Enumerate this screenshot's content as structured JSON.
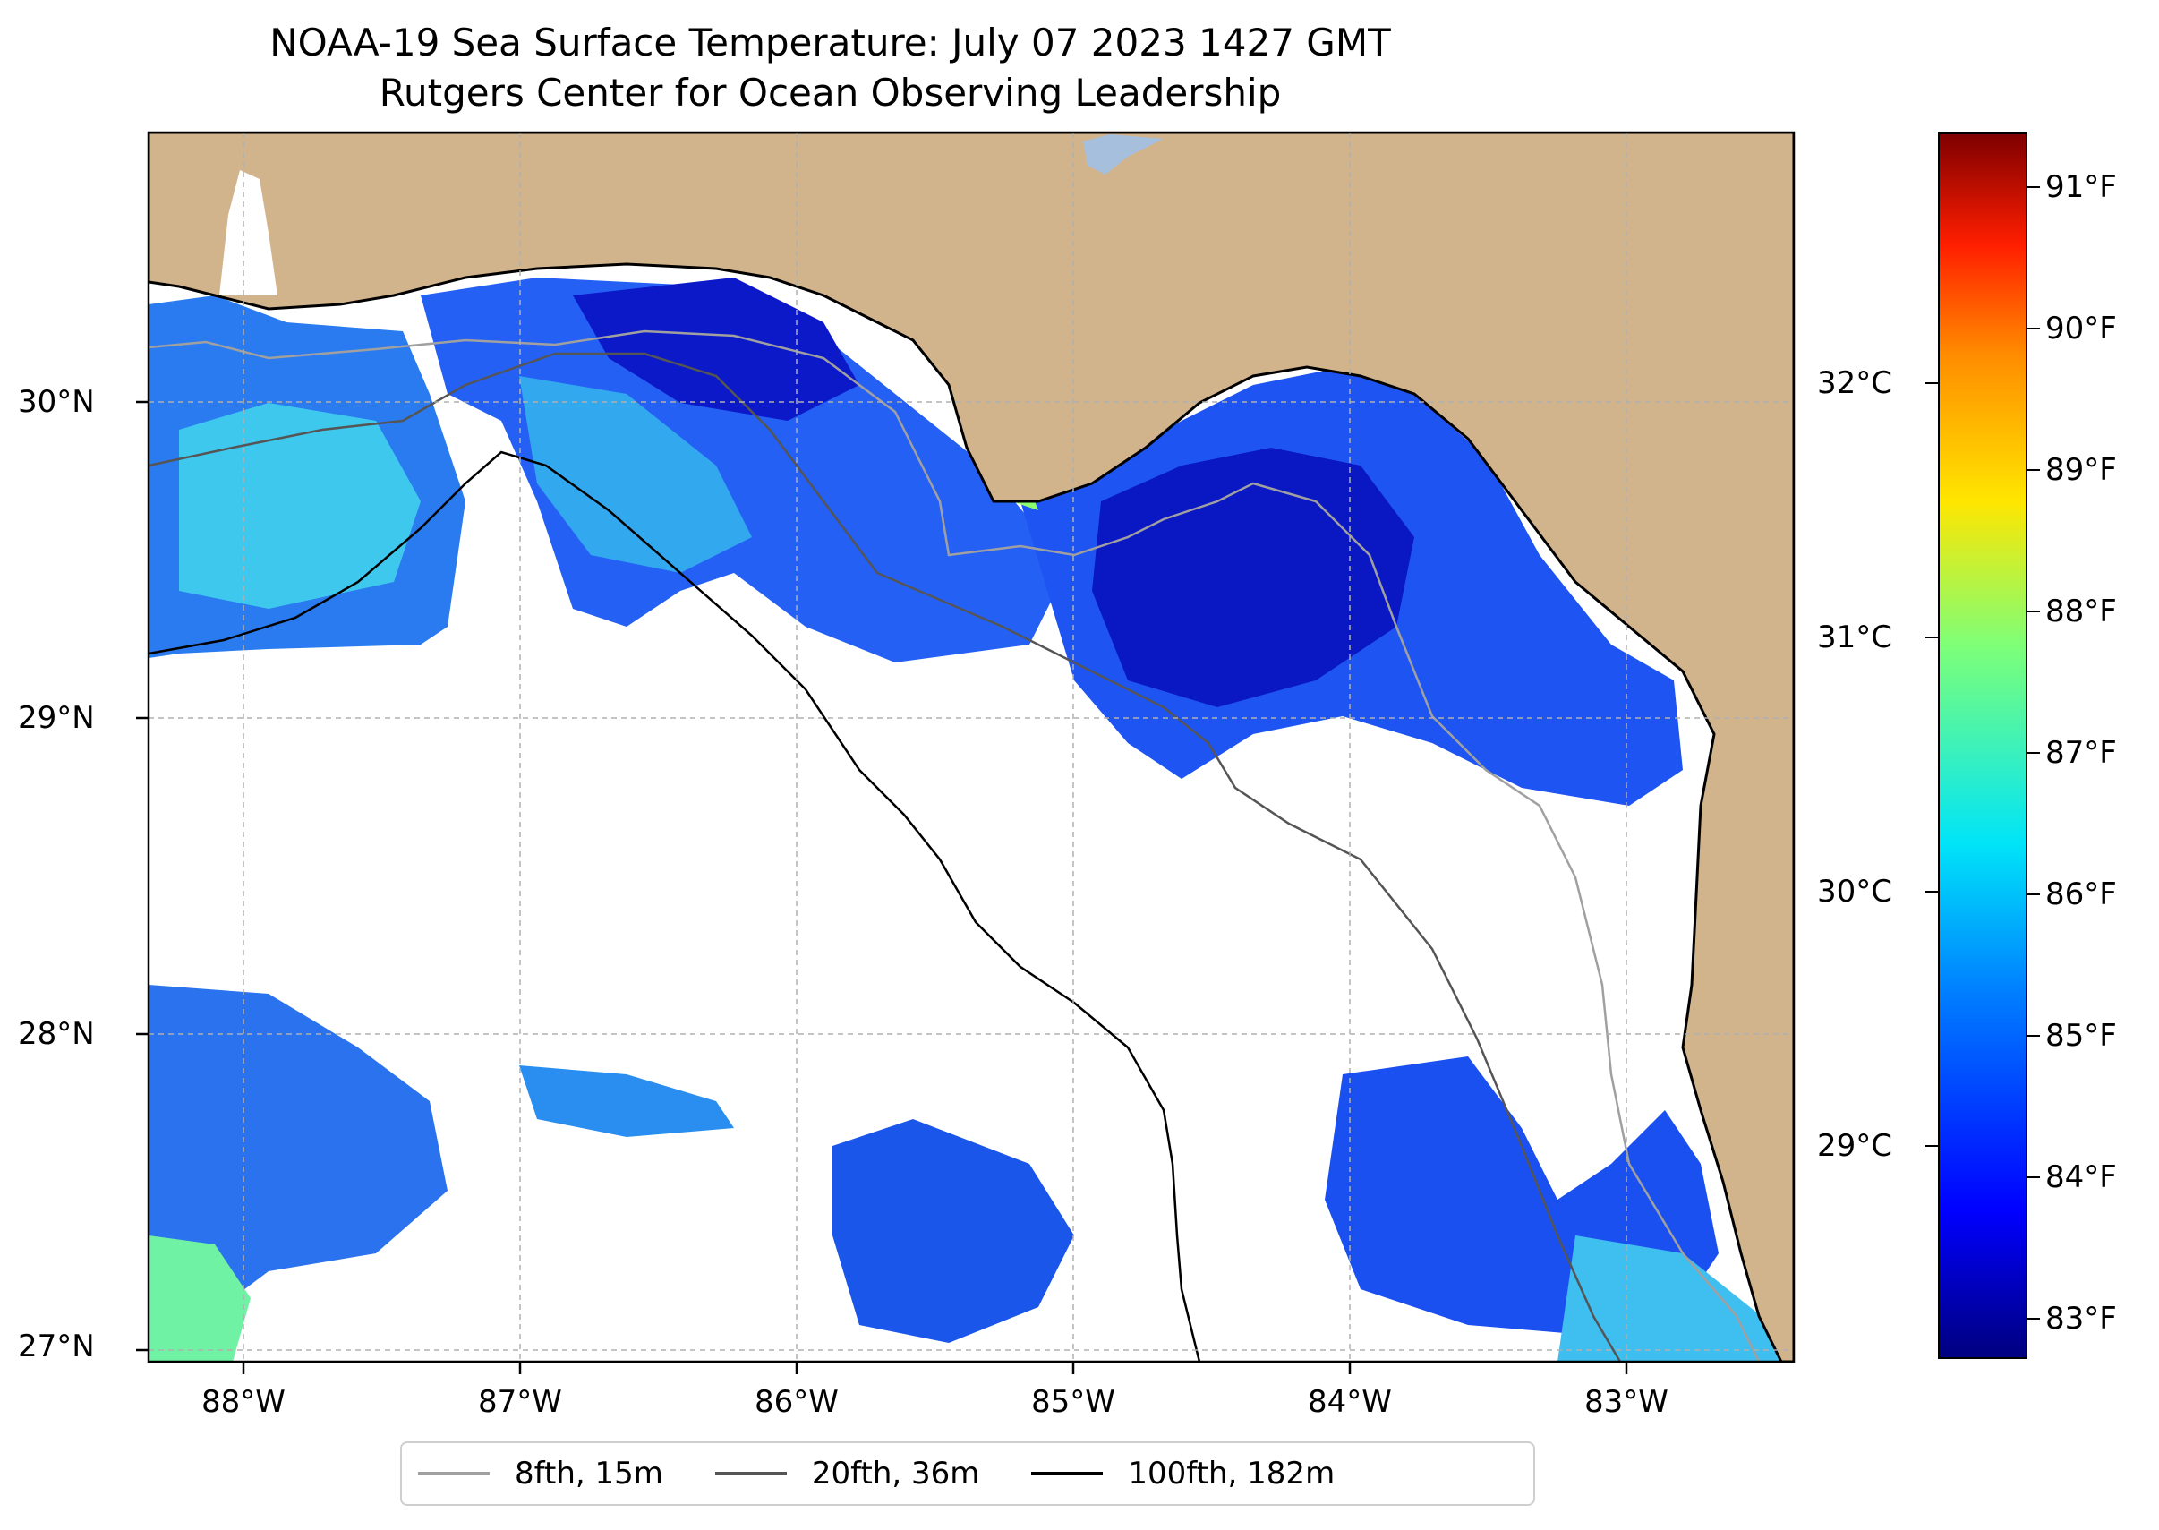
{
  "title": {
    "line1": "NOAA-19 Sea Surface Temperature: July 07 2023 1427 GMT",
    "line2": "Rutgers Center for Ocean Observing Leadership"
  },
  "map": {
    "lon_range": [
      -88.33,
      -82.38
    ],
    "lat_range": [
      26.93,
      30.85
    ],
    "land_color": "#d2b48c",
    "no_data_color": "#ffffff",
    "lon_labels": [
      "88°W",
      "87°W",
      "86°W",
      "85°W",
      "84°W",
      "83°W"
    ],
    "lon_values": [
      -88,
      -87,
      -86,
      -85,
      -84,
      -83
    ],
    "lat_labels": [
      "30°N",
      "29°N",
      "28°N",
      "27°N"
    ],
    "lat_values": [
      30,
      29,
      28,
      27
    ]
  },
  "colorbar": {
    "colormap": "jet",
    "range_f": [
      82.6,
      91.4
    ],
    "f_labels": [
      "91°F",
      "90°F",
      "89°F",
      "88°F",
      "87°F",
      "86°F",
      "85°F",
      "84°F",
      "83°F"
    ],
    "f_values": [
      91,
      90,
      89,
      88,
      87,
      86,
      85,
      84,
      83
    ],
    "c_labels": [
      "32°C",
      "31°C",
      "30°C",
      "29°C"
    ],
    "c_values": [
      32,
      31,
      30,
      29
    ]
  },
  "legend": {
    "placement": "bottom-center",
    "items": [
      {
        "label": "8fth, 15m",
        "color": "#a0a0a0"
      },
      {
        "label": "20fth, 36m",
        "color": "#555555"
      },
      {
        "label": "100fth, 182m",
        "color": "#000000"
      }
    ]
  }
}
